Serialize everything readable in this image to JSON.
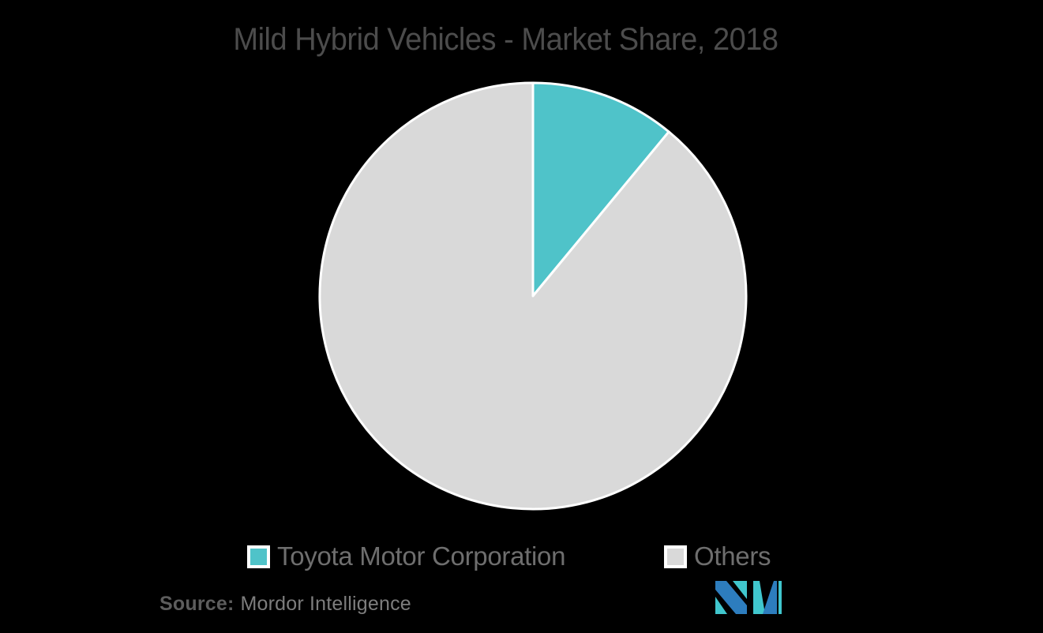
{
  "title": "Mild Hybrid Vehicles - Market Share, 2018",
  "chart_data": {
    "type": "pie",
    "title": "Mild Hybrid Vehicles - Market Share, 2018",
    "labels": [
      "Toyota Motor Corporation",
      "Others"
    ],
    "values": [
      11,
      89
    ],
    "unit": "percent",
    "colors": [
      "#4fc3c9",
      "#d9d9d9"
    ],
    "slice_border_color": "#ffffff",
    "start_angle_deg": 0,
    "direction": "clockwise",
    "legend_position": "bottom",
    "data_labels_shown": false
  },
  "legend": {
    "items": [
      {
        "label": "Toyota Motor Corporation",
        "color": "#4fc3c9"
      },
      {
        "label": "Others",
        "color": "#d9d9d9"
      }
    ]
  },
  "source": {
    "prefix": "Source:",
    "text": "Mordor Intelligence"
  },
  "branding": {
    "logo_name": "mordor-intelligence-logo",
    "logo_blue": "#2d7dbe",
    "logo_teal": "#40c6cd"
  },
  "layout_colors": {
    "background": "#000000",
    "title_text": "#4c4c4c",
    "legend_text": "#6e6e6e",
    "source_text": "#7d7d7d"
  }
}
